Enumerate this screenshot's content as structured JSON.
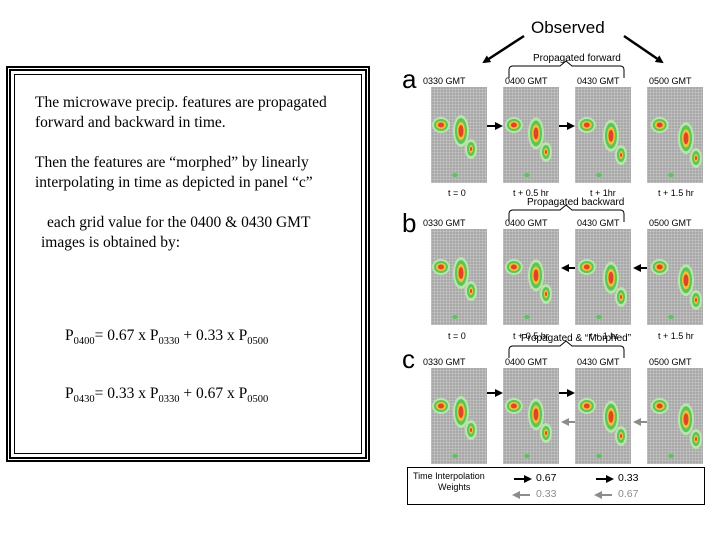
{
  "left_text": {
    "para1": "The microwave precip. features are propagated forward and backward in time.",
    "para2": "Then the features are “morphed” by linearly interpolating in time as depicted in panel “c”",
    "para3": "each grid value for the 0400 & 0430 GMT images is obtained by:",
    "formula1": {
      "lhs": "P",
      "lhs_sub": "0400",
      "eq": "= 0.67 x P",
      "s1": "0330",
      "mid": " + 0.33 x P",
      "s2": "0500"
    },
    "formula2": {
      "lhs": "P",
      "lhs_sub": "0430",
      "eq": "= 0.33 x P",
      "s1": "0330",
      "mid": " + 0.67 x P",
      "s2": "0500"
    }
  },
  "observed_label": "Observed",
  "panels": [
    {
      "letter": "a",
      "bracket_label": "Propagated forward",
      "times": [
        "0330 GMT",
        "0400  GMT",
        "0430  GMT",
        "0500  GMT"
      ],
      "offsets": [
        "t = 0",
        "t + 0.5 hr",
        "t + 1hr",
        "t + 1.5 hr"
      ]
    },
    {
      "letter": "b",
      "bracket_label": "Propagated backward",
      "times": [
        "0330 GMT",
        "0400  GMT",
        "0430  GMT",
        "0500  GMT"
      ],
      "offsets": [
        "t = 0",
        "t + 0.5 hr",
        "t + 1 hr",
        "t + 1.5 hr"
      ]
    },
    {
      "letter": "c",
      "bracket_label": "Propagated & “Morphed”",
      "times": [
        "0330 GMT",
        "0400  GMT",
        "0430  GMT",
        "0500  GMT"
      ],
      "offsets": []
    }
  ],
  "legend": {
    "title_line1": "Time Interpolation",
    "title_line2": "Weights",
    "black_1": "0.67",
    "black_2": "0.33",
    "gray_1": "0.33",
    "gray_2": "0.67",
    "color_black": "#000000",
    "color_gray": "#8c8c8c"
  }
}
